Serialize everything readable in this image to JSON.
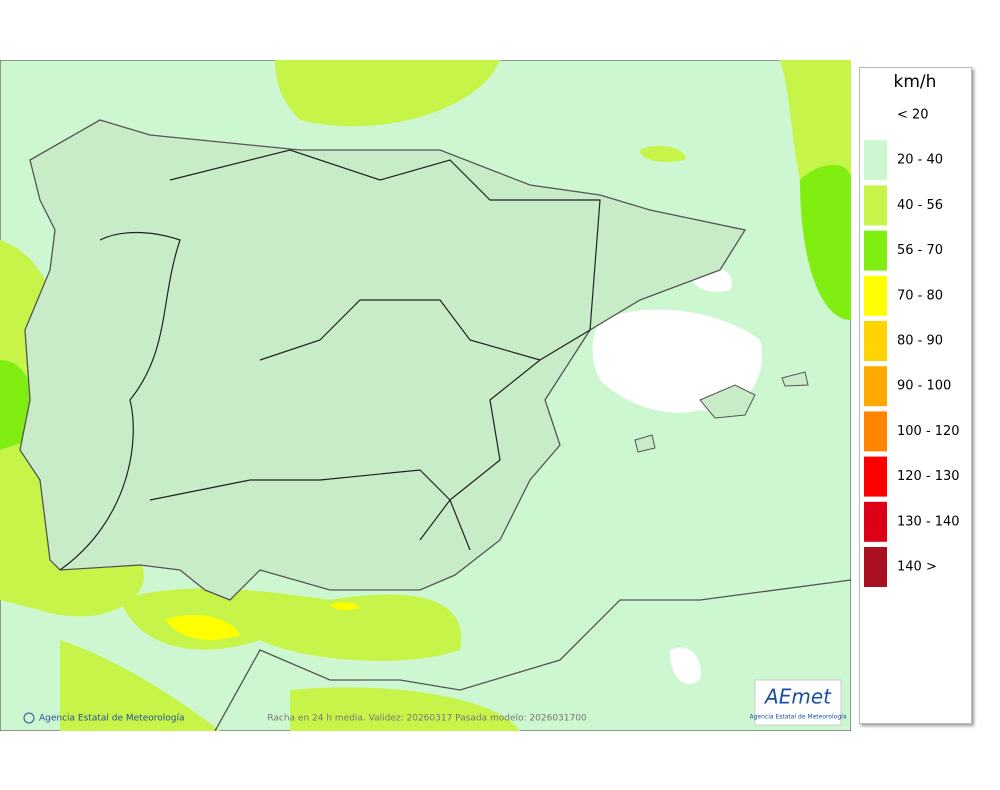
{
  "legend": {
    "title": "km/h",
    "items": [
      {
        "label": "< 20",
        "color": "#ffffff"
      },
      {
        "label": "20 - 40",
        "color": "#ccf7d0"
      },
      {
        "label": "40 - 56",
        "color": "#c6f448"
      },
      {
        "label": "56 - 70",
        "color": "#80ee10"
      },
      {
        "label": "70 - 80",
        "color": "#ffff00"
      },
      {
        "label": "80 - 90",
        "color": "#ffd400"
      },
      {
        "label": "90 - 100",
        "color": "#ffaa00"
      },
      {
        "label": "100 - 120",
        "color": "#ff8400"
      },
      {
        "label": "120 - 130",
        "color": "#ff0000"
      },
      {
        "label": "130 - 140",
        "color": "#dd0016"
      },
      {
        "label": "140 >",
        "color": "#aa1020"
      }
    ]
  },
  "footer": {
    "credit": "Agencia Estatal de Meteorología",
    "caption": "Racha en 24 h media. Validez: 20260317 Pasada modelo: 2026031700"
  },
  "logo": {
    "name": "AEmet",
    "subtitle": "Agencia Estatal de Meteorología"
  }
}
